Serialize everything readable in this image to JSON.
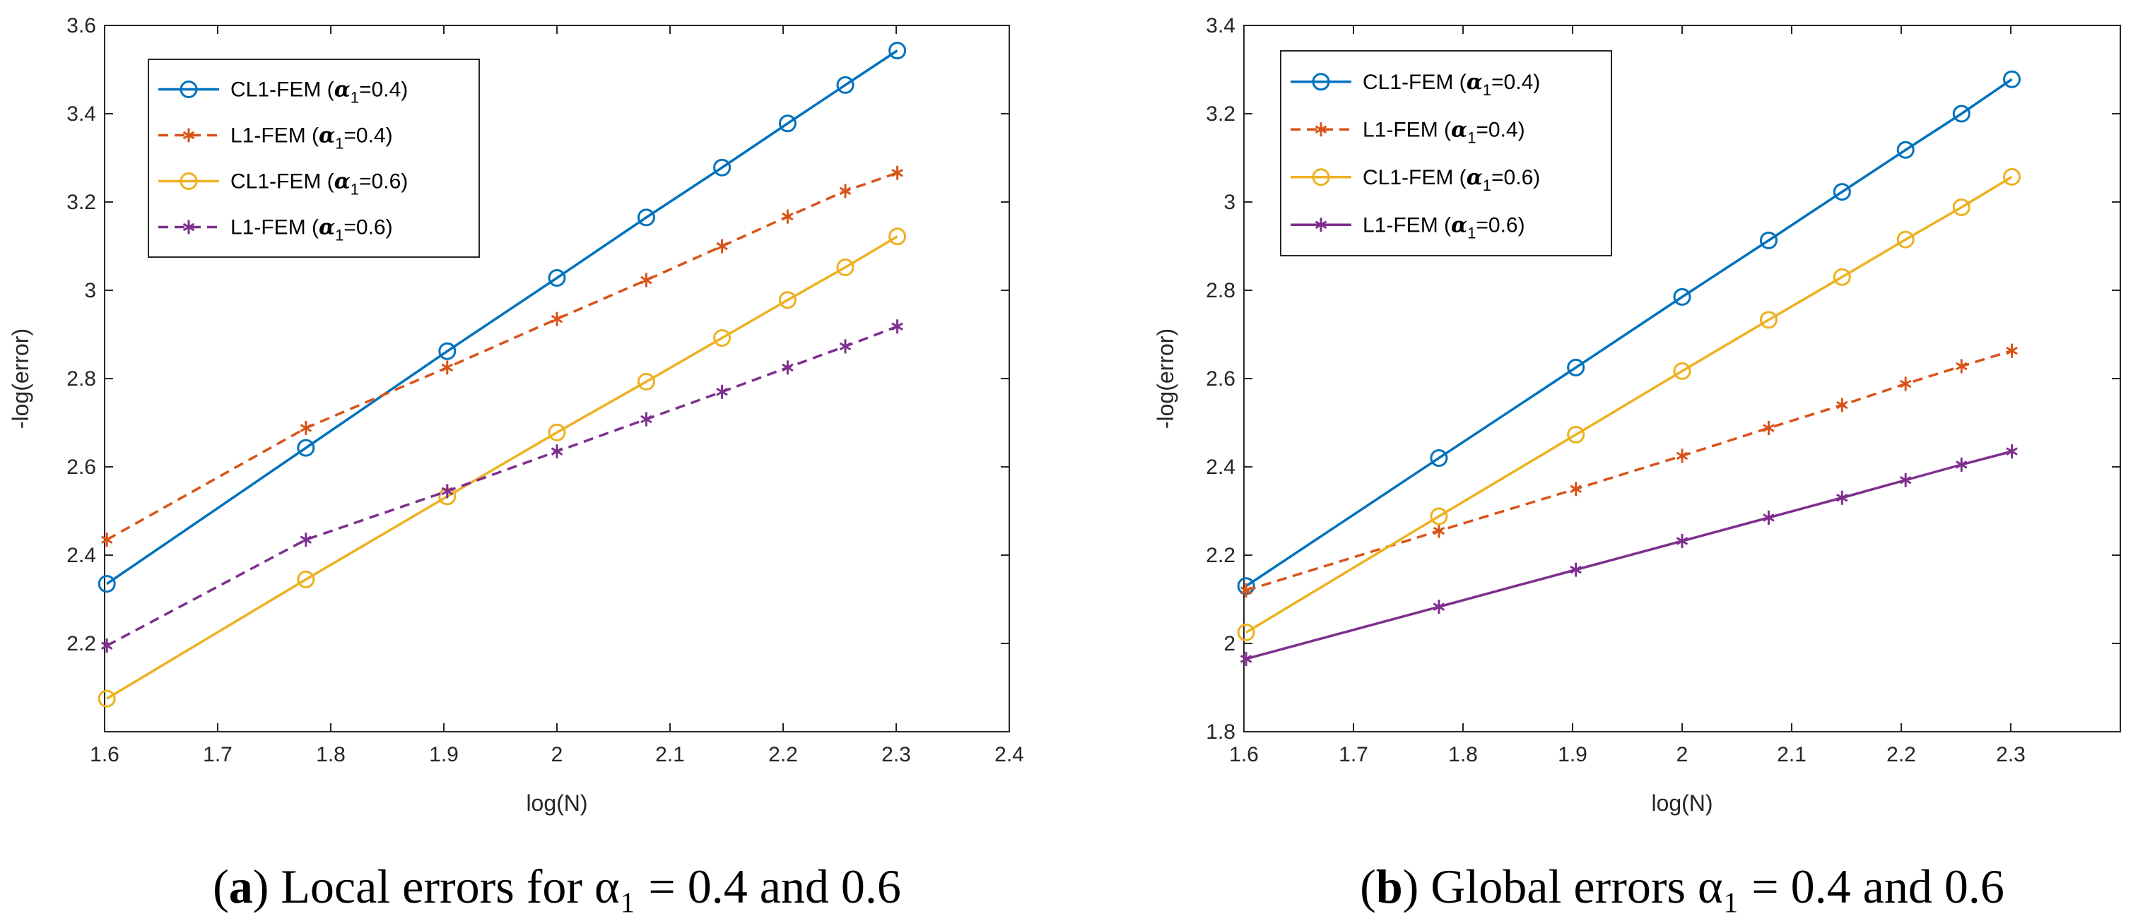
{
  "chart_data": [
    {
      "type": "line",
      "panel_label": "a",
      "caption": "Local errors for α₁ = 0.4 and 0.6",
      "xlabel": "log(N)",
      "ylabel": "-log(error)",
      "xlim": [
        1.6,
        2.4
      ],
      "ylim": [
        2.0,
        3.6
      ],
      "xticks": [
        "1.6",
        "1.7",
        "1.8",
        "1.9",
        "2",
        "2.1",
        "2.2",
        "2.3",
        "2.4"
      ],
      "yticks": [
        "2.2",
        "2.4",
        "2.6",
        "2.8",
        "3",
        "3.2",
        "3.4",
        "3.6"
      ],
      "x": [
        1.602,
        1.778,
        1.903,
        2.0,
        2.079,
        2.146,
        2.204,
        2.255,
        2.301
      ],
      "legend_position": "top-left",
      "series": [
        {
          "name": "CL1-FEM (α₁=0.4)",
          "label_main": "CL1-FEM (",
          "label_greek": "α",
          "label_sub": "1",
          "label_tail": "=0.4)",
          "color": "#0072BD",
          "style": "solid",
          "marker": "circle",
          "values": [
            2.335,
            2.643,
            2.862,
            3.028,
            3.165,
            3.278,
            3.378,
            3.465,
            3.543
          ]
        },
        {
          "name": "L1-FEM (α₁=0.4)",
          "label_main": "L1-FEM (",
          "label_greek": "α",
          "label_sub": "1",
          "label_tail": "=0.4)",
          "color": "#D95319",
          "style": "dashed",
          "marker": "asterisk",
          "values": [
            2.435,
            2.688,
            2.825,
            2.935,
            3.023,
            3.1,
            3.167,
            3.225,
            3.266
          ]
        },
        {
          "name": "CL1-FEM (α₁=0.6)",
          "label_main": "CL1-FEM (",
          "label_greek": "α",
          "label_sub": "1",
          "label_tail": "=0.6)",
          "color": "#EDB120",
          "style": "solid",
          "marker": "circle",
          "values": [
            2.075,
            2.345,
            2.533,
            2.678,
            2.793,
            2.892,
            2.978,
            3.052,
            3.122
          ]
        },
        {
          "name": "L1-FEM (α₁=0.6)",
          "label_main": "L1-FEM (",
          "label_greek": "α",
          "label_sub": "1",
          "label_tail": "=0.6)",
          "color": "#7E2F8E",
          "style": "dashed",
          "marker": "asterisk",
          "values": [
            2.195,
            2.435,
            2.545,
            2.635,
            2.708,
            2.77,
            2.825,
            2.873,
            2.918
          ]
        }
      ]
    },
    {
      "type": "line",
      "panel_label": "b",
      "caption": "Global errors α₁ = 0.4 and 0.6",
      "xlabel": "log(N)",
      "ylabel": "-log(error)",
      "xlim": [
        1.6,
        2.4
      ],
      "ylim": [
        1.8,
        3.4
      ],
      "xticks": [
        "1.6",
        "1.7",
        "1.8",
        "1.9",
        "2",
        "2.1",
        "2.2",
        "2.3"
      ],
      "yticks": [
        "1.8",
        "2",
        "2.2",
        "2.4",
        "2.6",
        "2.8",
        "3",
        "3.2",
        "3.4"
      ],
      "x": [
        1.602,
        1.778,
        1.903,
        2.0,
        2.079,
        2.146,
        2.204,
        2.255,
        2.301
      ],
      "legend_position": "top-left",
      "series": [
        {
          "name": "CL1-FEM (α₁=0.4)",
          "label_main": "CL1-FEM (",
          "label_greek": "α",
          "label_sub": "1",
          "label_tail": "=0.4)",
          "color": "#0072BD",
          "style": "solid",
          "marker": "circle",
          "values": [
            2.13,
            2.42,
            2.625,
            2.785,
            2.913,
            3.023,
            3.118,
            3.2,
            3.278
          ]
        },
        {
          "name": "L1-FEM (α₁=0.4)",
          "label_main": "L1-FEM (",
          "label_greek": "α",
          "label_sub": "1",
          "label_tail": "=0.4)",
          "color": "#D95319",
          "style": "dashed",
          "marker": "asterisk",
          "values": [
            2.12,
            2.255,
            2.35,
            2.425,
            2.488,
            2.54,
            2.588,
            2.628,
            2.663
          ]
        },
        {
          "name": "CL1-FEM (α₁=0.6)",
          "label_main": "CL1-FEM (",
          "label_greek": "α",
          "label_sub": "1",
          "label_tail": "=0.6)",
          "color": "#EDB120",
          "style": "solid",
          "marker": "circle",
          "values": [
            2.025,
            2.288,
            2.473,
            2.617,
            2.733,
            2.83,
            2.915,
            2.988,
            3.057
          ]
        },
        {
          "name": "L1-FEM (α₁=0.6)",
          "label_main": "L1-FEM (",
          "label_greek": "α",
          "label_sub": "1",
          "label_tail": "=0.6)",
          "color": "#7E2F8E",
          "style": "solid",
          "marker": "asterisk",
          "values": [
            1.965,
            2.083,
            2.167,
            2.232,
            2.285,
            2.33,
            2.37,
            2.405,
            2.435
          ]
        }
      ]
    }
  ]
}
